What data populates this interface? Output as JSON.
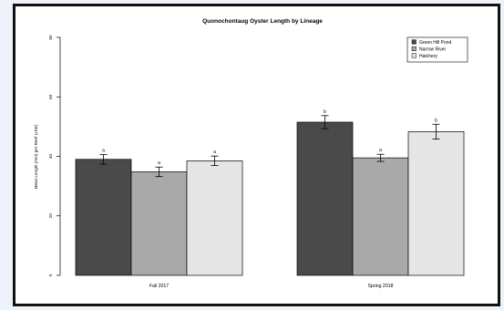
{
  "chart_data": {
    "type": "bar",
    "title": "Quonochontaug Oyster Length by Lineage",
    "xlabel": "",
    "ylabel": "Mean Length (mm) per Reef (±SE)",
    "ylim": [
      0,
      80
    ],
    "yticks": [
      "0",
      "20",
      "40",
      "60",
      "80"
    ],
    "grid": false,
    "legend_position": "top-right",
    "categories": [
      "Fall 2017",
      "Spring 2018"
    ],
    "series": [
      {
        "name": "Green Hill Pond",
        "color": "#4a4a4a",
        "values": [
          39.0,
          51.5
        ],
        "se": [
          1.6,
          2.2
        ],
        "labels": [
          "a",
          "b"
        ]
      },
      {
        "name": "Narrow River",
        "color": "#a9a9a9",
        "values": [
          34.8,
          39.5
        ],
        "se": [
          1.6,
          1.2
        ],
        "labels": [
          "a",
          "a"
        ]
      },
      {
        "name": "Hatchery",
        "color": "#e6e6e6",
        "values": [
          38.5,
          48.3
        ],
        "se": [
          1.6,
          2.5
        ],
        "labels": [
          "a",
          "b"
        ]
      }
    ]
  }
}
